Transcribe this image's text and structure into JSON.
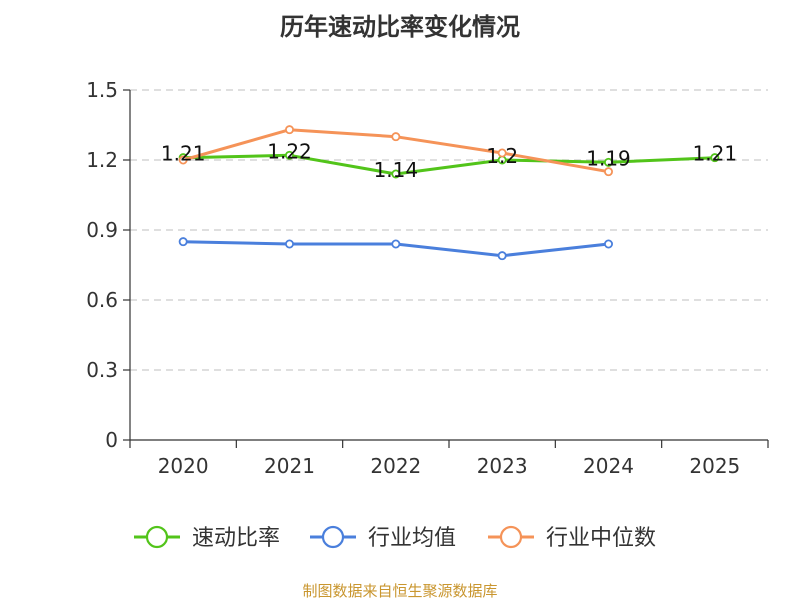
{
  "chart_data": {
    "type": "line",
    "title": "历年速动比率变化情况",
    "categories": [
      "2020",
      "2021",
      "2022",
      "2023",
      "2024",
      "2025"
    ],
    "ylim": [
      0,
      1.5
    ],
    "yticks": [
      "0",
      "0.3",
      "0.6",
      "0.9",
      "1.2",
      "1.5"
    ],
    "grid": true,
    "legend_position": "bottom",
    "series": [
      {
        "name": "速动比率",
        "color": "#52c41a",
        "values": [
          1.21,
          1.22,
          1.14,
          1.2,
          1.19,
          1.21
        ],
        "labels": [
          "1.21",
          "1.22",
          "1.14",
          "1.2",
          "1.19",
          "1.21"
        ]
      },
      {
        "name": "行业均值",
        "color": "#4a7fdc",
        "values": [
          0.85,
          0.84,
          0.84,
          0.79,
          0.84,
          null
        ]
      },
      {
        "name": "行业中位数",
        "color": "#f59358",
        "values": [
          1.2,
          1.33,
          1.3,
          1.23,
          1.15,
          null
        ]
      }
    ],
    "source": "制图数据来自恒生聚源数据库"
  }
}
